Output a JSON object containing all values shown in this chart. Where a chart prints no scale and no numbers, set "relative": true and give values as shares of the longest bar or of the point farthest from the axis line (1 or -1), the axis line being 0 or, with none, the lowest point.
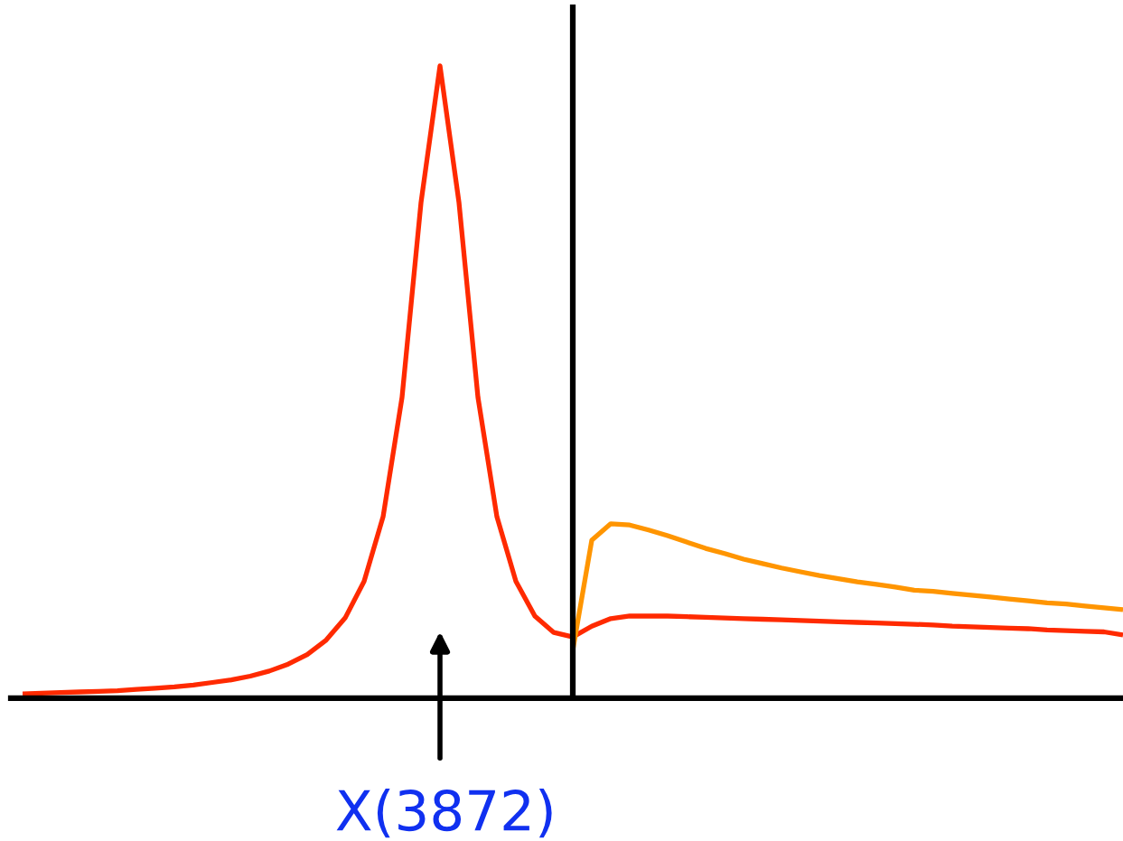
{
  "chart_data": {
    "type": "line",
    "relative": true,
    "categories": [
      null,
      null,
      null,
      null,
      null,
      null,
      null,
      null,
      null,
      null,
      null,
      null,
      null,
      null,
      null,
      null,
      null,
      null,
      null,
      null,
      null,
      null,
      null,
      null,
      null,
      null,
      null,
      null,
      null,
      null,
      null,
      null,
      null,
      null,
      null,
      null,
      null,
      null,
      null,
      null,
      null,
      null,
      null,
      null,
      null,
      null,
      null,
      null,
      null,
      null,
      null,
      null,
      null,
      null,
      null,
      null,
      null,
      null,
      null
    ],
    "series": [
      {
        "color": "#ff2a00",
        "values": [
          0.007,
          0.008,
          0.009,
          0.01,
          0.011,
          0.012,
          0.014,
          0.016,
          0.018,
          0.021,
          0.025,
          0.029,
          0.035,
          0.043,
          0.054,
          0.069,
          0.092,
          0.127,
          0.185,
          0.287,
          0.476,
          0.784,
          1.0,
          0.784,
          0.476,
          0.287,
          0.185,
          0.13,
          0.104,
          0.097,
          0.114,
          0.126,
          0.13,
          0.13,
          0.13,
          0.129,
          0.128,
          0.127,
          0.126,
          0.125,
          0.124,
          0.123,
          0.122,
          0.121,
          0.12,
          0.119,
          0.118,
          0.117,
          0.116,
          0.114,
          0.113,
          0.112,
          0.111,
          0.11,
          0.108,
          0.107,
          0.106,
          0.105,
          0.1
        ]
      },
      {
        "color": "#ff9500",
        "values": [
          null,
          null,
          null,
          null,
          null,
          null,
          null,
          null,
          null,
          null,
          null,
          null,
          null,
          null,
          null,
          null,
          null,
          null,
          null,
          null,
          null,
          null,
          null,
          null,
          null,
          null,
          null,
          null,
          null,
          0.076,
          0.25,
          0.276,
          0.274,
          0.266,
          0.257,
          0.247,
          0.237,
          0.229,
          0.22,
          0.213,
          0.206,
          0.2,
          0.194,
          0.189,
          0.184,
          0.18,
          0.176,
          0.171,
          0.169,
          0.166,
          0.163,
          0.16,
          0.157,
          0.154,
          0.151,
          0.149,
          0.146,
          0.143,
          0.14
        ]
      }
    ],
    "annotations": [
      "X(3872)"
    ],
    "grid": false,
    "legend": false
  }
}
